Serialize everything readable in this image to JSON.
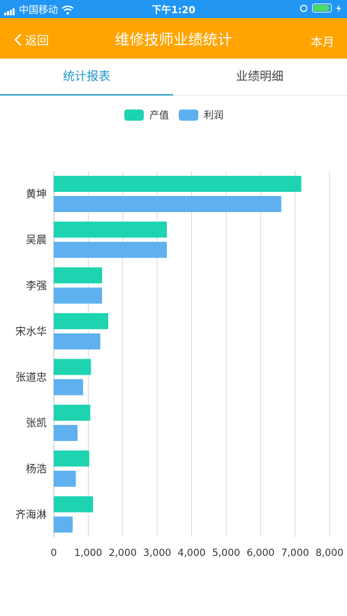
{
  "status_bar": {
    "carrier": "中国移动",
    "time": "下午1:20"
  },
  "header": {
    "back_label": "返回",
    "title": "维修技师业绩统计",
    "period_label": "本月"
  },
  "tabs": [
    {
      "label": "统计报表"
    },
    {
      "label": "业绩明细"
    }
  ],
  "colors": {
    "header": "#ffa400",
    "status": "#2196f3",
    "series_output": "#1dd3b0",
    "series_profit": "#5eb1ee"
  },
  "chart_data": {
    "type": "bar",
    "orientation": "horizontal",
    "categories": [
      "黄坤",
      "吴晨",
      "李强",
      "宋水华",
      "张道忠",
      "张凯",
      "杨浩",
      "齐海淋"
    ],
    "series": [
      {
        "name": "产值",
        "color": "#1dd3b0",
        "values": [
          7180,
          3280,
          1400,
          1580,
          1080,
          1060,
          1030,
          1140
        ]
      },
      {
        "name": "利润",
        "color": "#5eb1ee",
        "values": [
          6600,
          3280,
          1400,
          1350,
          850,
          690,
          640,
          550
        ]
      }
    ],
    "xlim": [
      0,
      8000
    ],
    "xticks": [
      "0",
      "1,000",
      "2,000",
      "3,000",
      "4,000",
      "5,000",
      "6,000",
      "7,000",
      "8,000"
    ],
    "grid": "vertical",
    "legend": "top-center"
  }
}
